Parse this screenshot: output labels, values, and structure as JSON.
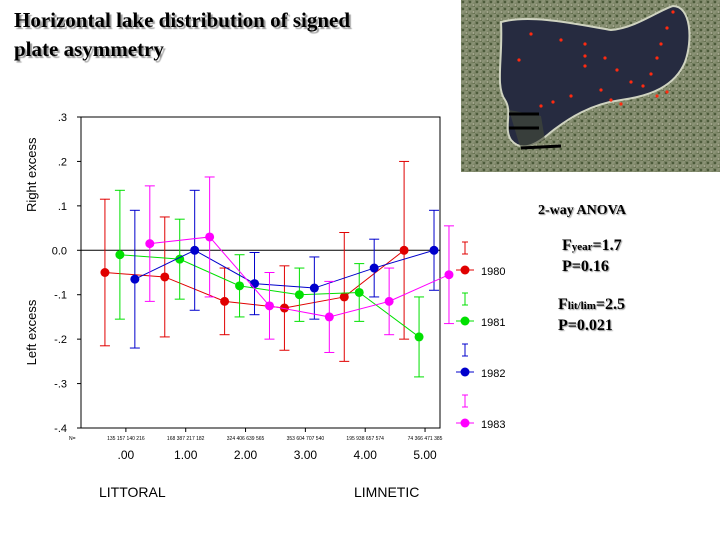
{
  "title": {
    "line1": "Horizontal lake distribution of signed",
    "line2": "plate asymmetry"
  },
  "stats": {
    "anova": "2-way ANOVA",
    "f_year_prefix": "F",
    "f_year_sub": "year",
    "f_year_value": "=1.7",
    "p_year": "P=0.16",
    "f_lim_prefix": "F",
    "f_lim_sub": "lit/lim",
    "f_lim_value": "=2.5",
    "p_lim": "P=0.021"
  },
  "bottom_labels": {
    "left": "LITTORAL",
    "right": "LIMNETIC"
  },
  "chart_data": {
    "type": "line",
    "ylabel_top": "Right excess",
    "ylabel_bottom": "Left excess",
    "ylim": [
      -0.4,
      0.3
    ],
    "yticks": [
      {
        "v": 0.3,
        "label": ".3"
      },
      {
        "v": 0.2,
        "label": ".2"
      },
      {
        "v": 0.1,
        "label": ".1"
      },
      {
        "v": 0.0,
        "label": "0.0"
      },
      {
        "v": -0.1,
        "label": "-.1"
      },
      {
        "v": -0.2,
        "label": "-.2"
      },
      {
        "v": -0.3,
        "label": "-.3"
      },
      {
        "v": -0.4,
        "label": "-.4"
      }
    ],
    "xlim": [
      -0.75,
      5.25
    ],
    "xticks": [
      {
        "v": 0,
        "label": ".00"
      },
      {
        "v": 1,
        "label": "1.00"
      },
      {
        "v": 2,
        "label": "2.00"
      },
      {
        "v": 3,
        "label": "3.00"
      },
      {
        "v": 4,
        "label": "4.00"
      },
      {
        "v": 5,
        "label": "5.00"
      }
    ],
    "n_prefix": "N=",
    "n_labels": [
      "135 157 140 216",
      "168 387 217 182",
      "324 406 639 565",
      "353 604 707 540",
      "195 938 657 574",
      "74 366 471 385"
    ],
    "zero_line": true,
    "series": [
      {
        "name": "1980",
        "color": "#e00000",
        "x": [
          -0.35,
          0.65,
          1.65,
          2.65,
          3.65,
          4.65
        ],
        "y": [
          -0.05,
          -0.06,
          -0.115,
          -0.13,
          -0.105,
          0.0
        ],
        "err": [
          0.165,
          0.135,
          0.075,
          0.095,
          0.145,
          0.2
        ]
      },
      {
        "name": "1981",
        "color": "#00e000",
        "x": [
          -0.1,
          0.9,
          1.9,
          2.9,
          3.9,
          4.9
        ],
        "y": [
          -0.01,
          -0.02,
          -0.08,
          -0.1,
          -0.095,
          -0.195
        ],
        "err": [
          0.145,
          0.09,
          0.07,
          0.06,
          0.065,
          0.09
        ]
      },
      {
        "name": "1982",
        "color": "#0000cc",
        "x": [
          0.15,
          1.15,
          2.15,
          3.15,
          4.15,
          5.15
        ],
        "y": [
          -0.065,
          0.0,
          -0.075,
          -0.085,
          -0.04,
          0.0
        ],
        "err": [
          0.155,
          0.135,
          0.07,
          0.07,
          0.065,
          0.09
        ]
      },
      {
        "name": "1983",
        "color": "#ff00ff",
        "x": [
          0.4,
          1.4,
          2.4,
          3.4,
          4.4,
          5.4
        ],
        "y": [
          0.015,
          0.03,
          -0.125,
          -0.15,
          -0.115,
          -0.055
        ],
        "err": [
          0.13,
          0.135,
          0.075,
          0.08,
          0.075,
          0.11
        ]
      }
    ],
    "legend_placement": "right"
  },
  "map_image": {
    "description_icon": "lake-aerial-photo",
    "dot_color": "#ff2a10"
  }
}
